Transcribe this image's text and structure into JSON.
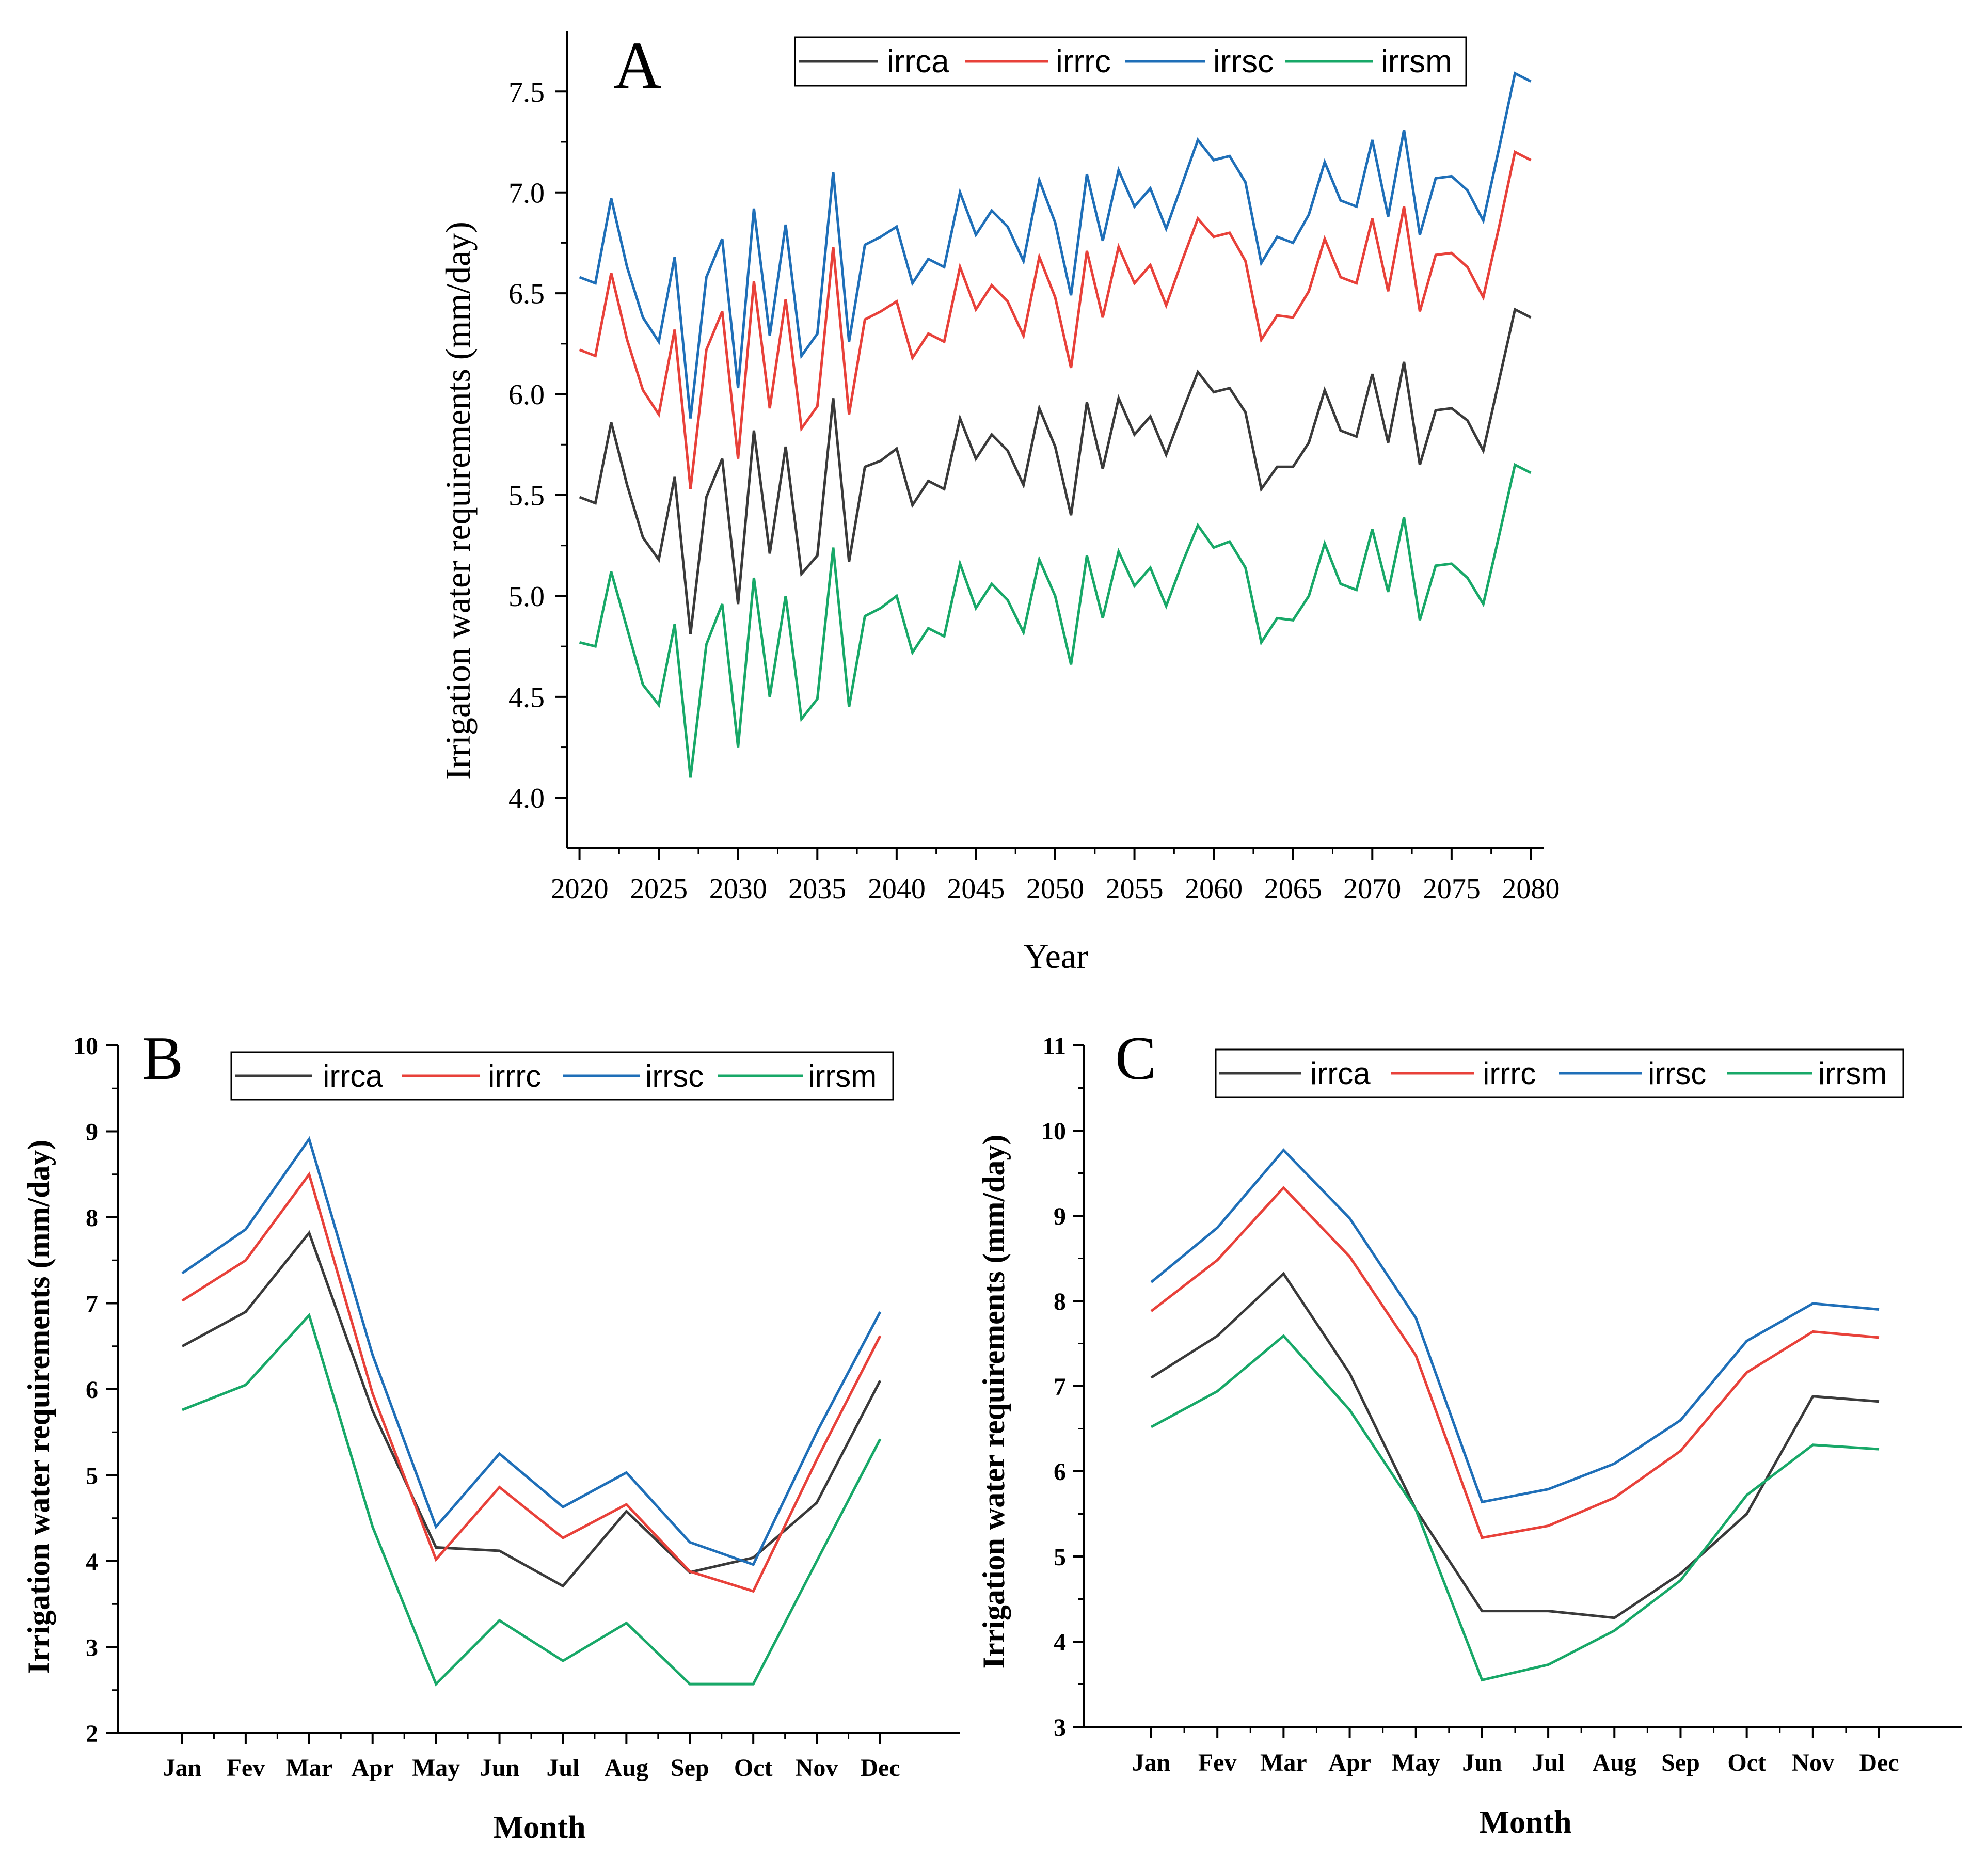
{
  "colors": {
    "irrca": "#3a3a3a",
    "irrrc": "#e8413a",
    "irrsc": "#1f6fb8",
    "irrsm": "#18a868",
    "axis": "#000000"
  },
  "chart_data": [
    {
      "id": "A",
      "type": "line",
      "panel_label": "A",
      "xlabel": "Year",
      "ylabel": "Irrigation water requirements (mm/day)",
      "xlim": [
        2019.2,
        2080.8
      ],
      "ylim": [
        3.75,
        7.8
      ],
      "x_ticks": [
        2020,
        2025,
        2030,
        2035,
        2040,
        2045,
        2050,
        2055,
        2060,
        2065,
        2070,
        2075,
        2080
      ],
      "x_tick_labels": [
        "2020",
        "2025",
        "2030",
        "2035",
        "2040",
        "2045",
        "2050",
        "2055",
        "2060",
        "2065",
        "2070",
        "2075",
        "2080"
      ],
      "y_ticks": [
        4.0,
        4.5,
        5.0,
        5.5,
        6.0,
        6.5,
        7.0,
        7.5
      ],
      "y_tick_labels": [
        "4.0",
        "4.5",
        "5.0",
        "5.5",
        "6.0",
        "6.5",
        "7.0",
        "7.5"
      ],
      "legend": [
        "irrca",
        "irrrc",
        "irrsc",
        "irrsm"
      ],
      "x": [
        2020,
        2021,
        2022,
        2023,
        2024,
        2025,
        2026,
        2027,
        2028,
        2029,
        2030,
        2031,
        2032,
        2033,
        2034,
        2035,
        2036,
        2037,
        2038,
        2039,
        2040,
        2041,
        2042,
        2043,
        2044,
        2045,
        2046,
        2047,
        2048,
        2049,
        2050,
        2051,
        2052,
        2053,
        2054,
        2055,
        2056,
        2057,
        2058,
        2059,
        2060,
        2061,
        2062,
        2063,
        2064,
        2065,
        2066,
        2067,
        2068,
        2069,
        2070,
        2071,
        2072,
        2073,
        2074,
        2075,
        2076,
        2077,
        2078,
        2079,
        2080
      ],
      "series": [
        {
          "name": "irrca",
          "values": [
            5.49,
            5.46,
            5.86,
            5.55,
            5.29,
            5.18,
            5.59,
            4.81,
            5.49,
            5.68,
            4.96,
            5.82,
            5.21,
            5.74,
            5.11,
            5.2,
            5.98,
            5.17,
            5.64,
            5.67,
            5.73,
            5.45,
            5.57,
            5.53,
            5.88,
            5.68,
            5.8,
            5.72,
            5.55,
            5.93,
            5.74,
            5.4,
            5.96,
            5.63,
            5.98,
            5.8,
            5.89,
            5.7,
            5.91,
            6.11,
            6.01,
            6.03,
            5.91,
            5.53,
            5.64,
            5.64,
            5.76,
            6.02,
            5.82,
            5.79,
            6.1,
            5.76,
            6.16,
            5.65,
            5.92,
            5.93,
            5.87,
            5.72,
            6.07,
            6.42,
            6.38
          ]
        },
        {
          "name": "irrrc",
          "values": [
            6.22,
            6.19,
            6.6,
            6.27,
            6.02,
            5.9,
            6.32,
            5.53,
            6.22,
            6.41,
            5.68,
            6.56,
            5.93,
            6.47,
            5.83,
            5.94,
            6.73,
            5.9,
            6.37,
            6.41,
            6.46,
            6.18,
            6.3,
            6.26,
            6.63,
            6.42,
            6.54,
            6.46,
            6.29,
            6.68,
            6.48,
            6.13,
            6.71,
            6.38,
            6.73,
            6.55,
            6.64,
            6.44,
            6.66,
            6.87,
            6.78,
            6.8,
            6.66,
            6.27,
            6.39,
            6.38,
            6.51,
            6.77,
            6.58,
            6.55,
            6.87,
            6.51,
            6.93,
            6.41,
            6.69,
            6.7,
            6.63,
            6.48,
            6.83,
            7.2,
            7.16
          ]
        },
        {
          "name": "irrsc",
          "values": [
            6.58,
            6.55,
            6.97,
            6.63,
            6.38,
            6.26,
            6.68,
            5.88,
            6.58,
            6.77,
            6.03,
            6.92,
            6.29,
            6.84,
            6.19,
            6.3,
            7.1,
            6.26,
            6.74,
            6.78,
            6.83,
            6.55,
            6.67,
            6.63,
            7.0,
            6.79,
            6.91,
            6.83,
            6.66,
            7.06,
            6.85,
            6.49,
            7.09,
            6.76,
            7.11,
            6.93,
            7.02,
            6.82,
            7.04,
            7.26,
            7.16,
            7.18,
            7.05,
            6.65,
            6.78,
            6.75,
            6.89,
            7.15,
            6.96,
            6.93,
            7.26,
            6.88,
            7.31,
            6.79,
            7.07,
            7.08,
            7.01,
            6.86,
            7.22,
            7.59,
            7.55
          ]
        },
        {
          "name": "irrsm",
          "values": [
            4.77,
            4.75,
            5.12,
            4.84,
            4.56,
            4.46,
            4.86,
            4.1,
            4.76,
            4.96,
            4.25,
            5.09,
            4.5,
            5.0,
            4.39,
            4.49,
            5.24,
            4.45,
            4.9,
            4.94,
            5.0,
            4.72,
            4.84,
            4.8,
            5.16,
            4.94,
            5.06,
            4.98,
            4.82,
            5.18,
            5.0,
            4.66,
            5.2,
            4.89,
            5.22,
            5.05,
            5.14,
            4.95,
            5.16,
            5.35,
            5.24,
            5.27,
            5.14,
            4.77,
            4.89,
            4.88,
            5.0,
            5.26,
            5.06,
            5.03,
            5.33,
            5.02,
            5.39,
            4.88,
            5.15,
            5.16,
            5.09,
            4.96,
            5.3,
            5.65,
            5.61
          ]
        }
      ]
    },
    {
      "id": "B",
      "type": "line",
      "panel_label": "B",
      "xlabel": "Month",
      "ylabel": "Irrigation water requirements (mm/day)",
      "ylim": [
        2,
        10
      ],
      "y_ticks": [
        2,
        3,
        4,
        5,
        6,
        7,
        8,
        9,
        10
      ],
      "y_tick_labels": [
        "2",
        "3",
        "4",
        "5",
        "6",
        "7",
        "8",
        "9",
        "10"
      ],
      "categories": [
        "Jan",
        "Fev",
        "Mar",
        "Apr",
        "May",
        "Jun",
        "Jul",
        "Aug",
        "Sep",
        "Oct",
        "Nov",
        "Dec"
      ],
      "legend": [
        "irrca",
        "irrrc",
        "irrsc",
        "irrsm"
      ],
      "series": [
        {
          "name": "irrca",
          "values": [
            6.5,
            6.9,
            7.82,
            5.75,
            4.16,
            4.12,
            3.71,
            4.58,
            3.87,
            4.04,
            4.68,
            6.1
          ]
        },
        {
          "name": "irrrc",
          "values": [
            7.03,
            7.5,
            8.5,
            5.95,
            4.02,
            4.86,
            4.27,
            4.66,
            3.88,
            3.65,
            5.18,
            6.62
          ]
        },
        {
          "name": "irrsc",
          "values": [
            7.35,
            7.86,
            8.91,
            6.4,
            4.4,
            5.25,
            4.63,
            5.03,
            4.22,
            3.96,
            5.5,
            6.9
          ]
        },
        {
          "name": "irrsm",
          "values": [
            5.76,
            6.05,
            6.86,
            4.4,
            2.57,
            3.31,
            2.84,
            3.28,
            2.57,
            2.57,
            4.0,
            5.42
          ]
        }
      ]
    },
    {
      "id": "C",
      "type": "line",
      "panel_label": "C",
      "xlabel": "Month",
      "ylabel": "Irrigation water requirements (mm/day)",
      "ylim": [
        3,
        11
      ],
      "y_ticks": [
        3,
        4,
        5,
        6,
        7,
        8,
        9,
        10,
        11
      ],
      "y_tick_labels": [
        "3",
        "4",
        "5",
        "6",
        "7",
        "8",
        "9",
        "10",
        "11"
      ],
      "categories": [
        "Jan",
        "Fev",
        "Mar",
        "Apr",
        "May",
        "Jun",
        "Jul",
        "Aug",
        "Sep",
        "Oct",
        "Nov",
        "Dec"
      ],
      "legend": [
        "irrca",
        "irrrc",
        "irrsc",
        "irrsm"
      ],
      "series": [
        {
          "name": "irrca",
          "values": [
            7.1,
            7.59,
            8.32,
            7.15,
            5.55,
            4.36,
            4.36,
            4.28,
            4.8,
            5.5,
            6.88,
            6.82
          ]
        },
        {
          "name": "irrrc",
          "values": [
            7.88,
            8.48,
            9.33,
            8.52,
            7.36,
            5.22,
            5.36,
            5.69,
            6.24,
            7.16,
            7.64,
            7.57
          ]
        },
        {
          "name": "irrsc",
          "values": [
            8.22,
            8.86,
            9.77,
            8.97,
            7.8,
            5.64,
            5.79,
            6.09,
            6.6,
            7.53,
            7.97,
            7.9
          ]
        },
        {
          "name": "irrsm",
          "values": [
            6.52,
            6.94,
            7.59,
            6.72,
            5.55,
            3.55,
            3.73,
            4.13,
            4.72,
            5.72,
            6.31,
            6.26
          ]
        }
      ]
    }
  ]
}
